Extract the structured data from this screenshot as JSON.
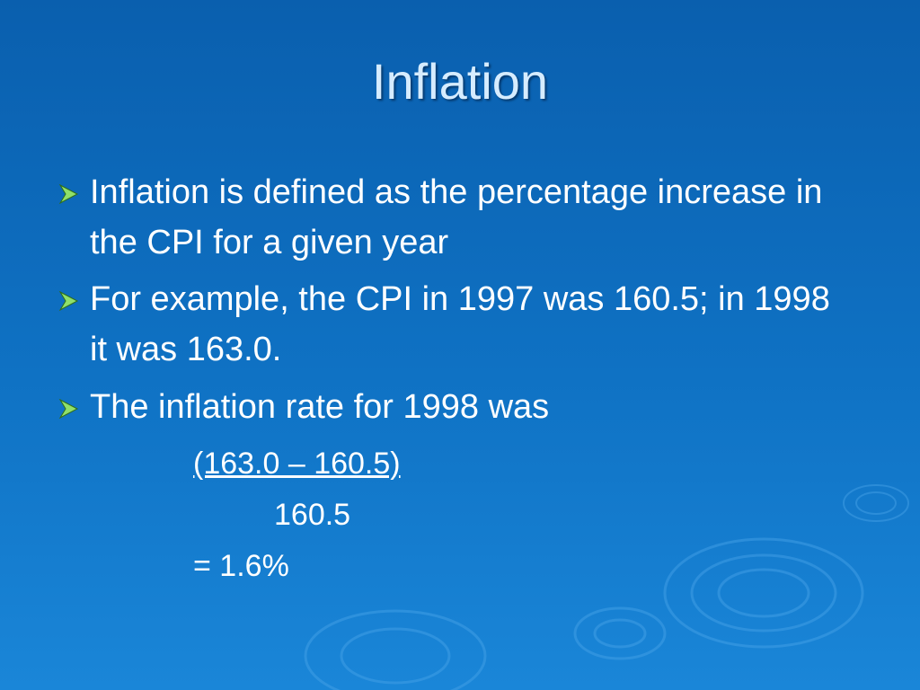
{
  "title": "Inflation",
  "bullets": [
    "Inflation is defined as the percentage increase in the CPI for a given year",
    "For example, the CPI in 1997 was 160.5; in 1998 it was 163.0.",
    "The inflation rate for 1998 was"
  ],
  "formula": {
    "numerator": "(163.0 – 160.5)",
    "denominator": "160.5",
    "result": "= 1.6%"
  }
}
